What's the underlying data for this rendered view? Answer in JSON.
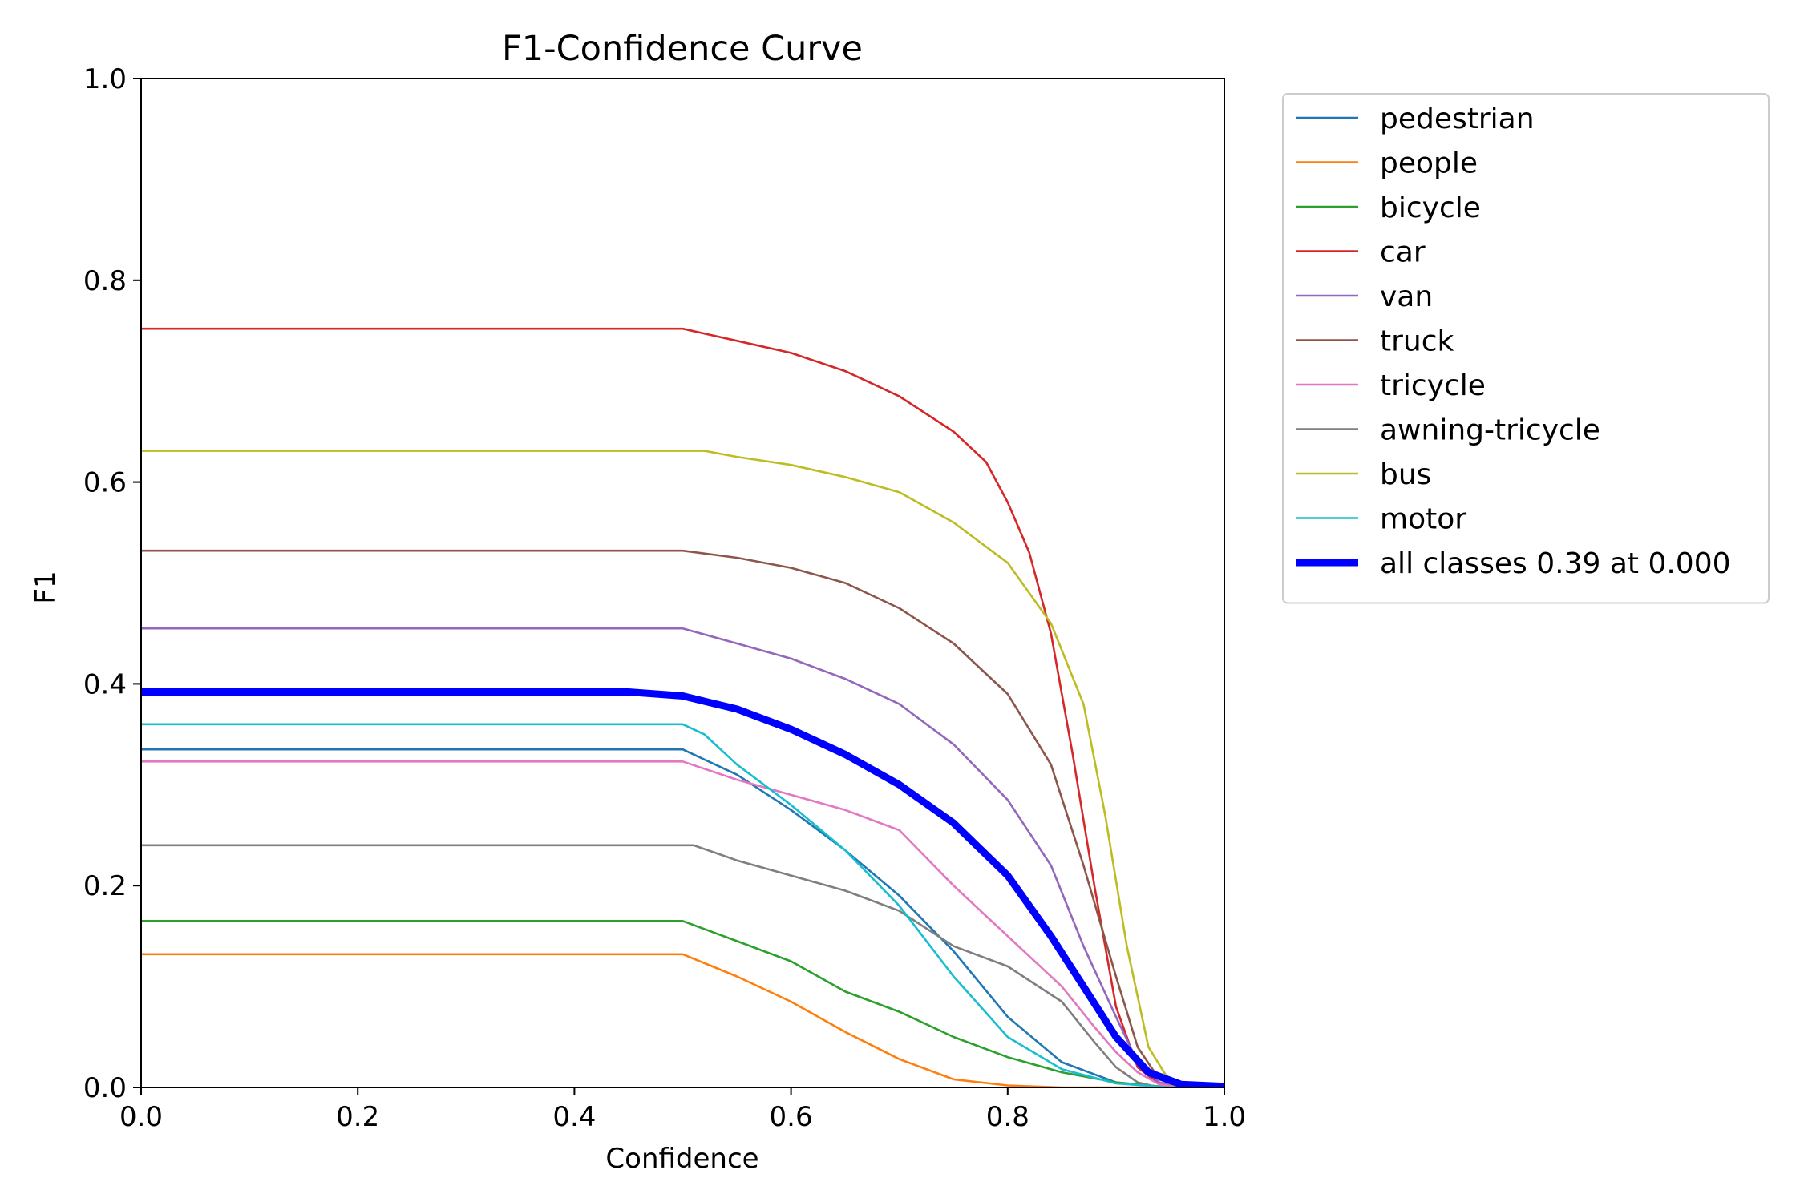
{
  "chart_data": {
    "type": "line",
    "title": "F1-Confidence Curve",
    "xlabel": "Confidence",
    "ylabel": "F1",
    "xlim": [
      0.0,
      1.0
    ],
    "ylim": [
      0.0,
      1.0
    ],
    "xticks": [
      "0.0",
      "0.2",
      "0.4",
      "0.6",
      "0.8",
      "1.0"
    ],
    "yticks": [
      "0.0",
      "0.2",
      "0.4",
      "0.6",
      "0.8",
      "1.0"
    ],
    "legend_position": "outside-top-right",
    "series": [
      {
        "name": "pedestrian",
        "color": "#1f77b4",
        "width": "thin",
        "points": [
          [
            0,
            0.335
          ],
          [
            0.5,
            0.335
          ],
          [
            0.55,
            0.31
          ],
          [
            0.6,
            0.275
          ],
          [
            0.65,
            0.235
          ],
          [
            0.7,
            0.19
          ],
          [
            0.75,
            0.135
          ],
          [
            0.8,
            0.07
          ],
          [
            0.85,
            0.025
          ],
          [
            0.9,
            0.005
          ],
          [
            0.95,
            0
          ],
          [
            1.0,
            0
          ]
        ]
      },
      {
        "name": "people",
        "color": "#ff7f0e",
        "width": "thin",
        "points": [
          [
            0,
            0.132
          ],
          [
            0.5,
            0.132
          ],
          [
            0.55,
            0.11
          ],
          [
            0.6,
            0.085
          ],
          [
            0.65,
            0.055
          ],
          [
            0.7,
            0.028
          ],
          [
            0.75,
            0.008
          ],
          [
            0.8,
            0.002
          ],
          [
            0.85,
            0
          ],
          [
            1.0,
            0
          ]
        ]
      },
      {
        "name": "bicycle",
        "color": "#2ca02c",
        "width": "thin",
        "points": [
          [
            0,
            0.165
          ],
          [
            0.5,
            0.165
          ],
          [
            0.55,
            0.145
          ],
          [
            0.6,
            0.125
          ],
          [
            0.65,
            0.095
          ],
          [
            0.7,
            0.075
          ],
          [
            0.75,
            0.05
          ],
          [
            0.8,
            0.03
          ],
          [
            0.85,
            0.015
          ],
          [
            0.9,
            0.005
          ],
          [
            0.95,
            0
          ],
          [
            1.0,
            0
          ]
        ]
      },
      {
        "name": "car",
        "color": "#d62728",
        "width": "thin",
        "points": [
          [
            0,
            0.752
          ],
          [
            0.5,
            0.752
          ],
          [
            0.55,
            0.74
          ],
          [
            0.6,
            0.728
          ],
          [
            0.65,
            0.71
          ],
          [
            0.7,
            0.685
          ],
          [
            0.75,
            0.65
          ],
          [
            0.78,
            0.62
          ],
          [
            0.8,
            0.58
          ],
          [
            0.82,
            0.53
          ],
          [
            0.84,
            0.45
          ],
          [
            0.86,
            0.33
          ],
          [
            0.88,
            0.2
          ],
          [
            0.9,
            0.08
          ],
          [
            0.92,
            0.02
          ],
          [
            0.94,
            0.003
          ],
          [
            0.96,
            0
          ],
          [
            1.0,
            0
          ]
        ]
      },
      {
        "name": "van",
        "color": "#9467bd",
        "width": "thin",
        "points": [
          [
            0,
            0.455
          ],
          [
            0.5,
            0.455
          ],
          [
            0.55,
            0.44
          ],
          [
            0.6,
            0.425
          ],
          [
            0.65,
            0.405
          ],
          [
            0.7,
            0.38
          ],
          [
            0.75,
            0.34
          ],
          [
            0.8,
            0.285
          ],
          [
            0.84,
            0.22
          ],
          [
            0.87,
            0.14
          ],
          [
            0.9,
            0.07
          ],
          [
            0.92,
            0.025
          ],
          [
            0.94,
            0.005
          ],
          [
            0.96,
            0
          ],
          [
            1.0,
            0
          ]
        ]
      },
      {
        "name": "truck",
        "color": "#8c564b",
        "width": "thin",
        "points": [
          [
            0,
            0.532
          ],
          [
            0.5,
            0.532
          ],
          [
            0.55,
            0.525
          ],
          [
            0.6,
            0.515
          ],
          [
            0.65,
            0.5
          ],
          [
            0.7,
            0.475
          ],
          [
            0.75,
            0.44
          ],
          [
            0.8,
            0.39
          ],
          [
            0.84,
            0.32
          ],
          [
            0.87,
            0.22
          ],
          [
            0.9,
            0.11
          ],
          [
            0.92,
            0.04
          ],
          [
            0.94,
            0.008
          ],
          [
            0.96,
            0
          ],
          [
            1.0,
            0
          ]
        ]
      },
      {
        "name": "tricycle",
        "color": "#e377c2",
        "width": "thin",
        "points": [
          [
            0,
            0.323
          ],
          [
            0.5,
            0.323
          ],
          [
            0.55,
            0.305
          ],
          [
            0.6,
            0.29
          ],
          [
            0.65,
            0.275
          ],
          [
            0.7,
            0.255
          ],
          [
            0.75,
            0.2
          ],
          [
            0.8,
            0.15
          ],
          [
            0.85,
            0.1
          ],
          [
            0.88,
            0.06
          ],
          [
            0.9,
            0.035
          ],
          [
            0.92,
            0.015
          ],
          [
            0.94,
            0.003
          ],
          [
            0.96,
            0
          ],
          [
            1.0,
            0
          ]
        ]
      },
      {
        "name": "awning-tricycle",
        "color": "#7f7f7f",
        "width": "thin",
        "points": [
          [
            0,
            0.24
          ],
          [
            0.51,
            0.24
          ],
          [
            0.55,
            0.225
          ],
          [
            0.6,
            0.21
          ],
          [
            0.65,
            0.195
          ],
          [
            0.7,
            0.175
          ],
          [
            0.75,
            0.14
          ],
          [
            0.8,
            0.12
          ],
          [
            0.85,
            0.085
          ],
          [
            0.88,
            0.045
          ],
          [
            0.9,
            0.02
          ],
          [
            0.92,
            0.005
          ],
          [
            0.94,
            0
          ],
          [
            1.0,
            0
          ]
        ]
      },
      {
        "name": "bus",
        "color": "#bcbd22",
        "width": "thin",
        "points": [
          [
            0,
            0.631
          ],
          [
            0.52,
            0.631
          ],
          [
            0.55,
            0.625
          ],
          [
            0.6,
            0.617
          ],
          [
            0.65,
            0.605
          ],
          [
            0.7,
            0.59
          ],
          [
            0.75,
            0.56
          ],
          [
            0.8,
            0.52
          ],
          [
            0.84,
            0.46
          ],
          [
            0.87,
            0.38
          ],
          [
            0.89,
            0.27
          ],
          [
            0.91,
            0.14
          ],
          [
            0.93,
            0.04
          ],
          [
            0.95,
            0.005
          ],
          [
            0.97,
            0
          ],
          [
            1.0,
            0
          ]
        ]
      },
      {
        "name": "motor",
        "color": "#17becf",
        "width": "thin",
        "points": [
          [
            0,
            0.36
          ],
          [
            0.5,
            0.36
          ],
          [
            0.52,
            0.35
          ],
          [
            0.55,
            0.32
          ],
          [
            0.6,
            0.28
          ],
          [
            0.65,
            0.235
          ],
          [
            0.7,
            0.18
          ],
          [
            0.75,
            0.11
          ],
          [
            0.8,
            0.05
          ],
          [
            0.85,
            0.018
          ],
          [
            0.9,
            0.004
          ],
          [
            0.95,
            0
          ],
          [
            1.0,
            0
          ]
        ]
      },
      {
        "name": "all classes 0.39 at 0.000",
        "color": "#0000ff",
        "width": "thick",
        "points": [
          [
            0,
            0.392
          ],
          [
            0.45,
            0.392
          ],
          [
            0.5,
            0.388
          ],
          [
            0.55,
            0.375
          ],
          [
            0.6,
            0.355
          ],
          [
            0.65,
            0.33
          ],
          [
            0.7,
            0.3
          ],
          [
            0.75,
            0.262
          ],
          [
            0.8,
            0.21
          ],
          [
            0.84,
            0.15
          ],
          [
            0.87,
            0.1
          ],
          [
            0.9,
            0.05
          ],
          [
            0.93,
            0.015
          ],
          [
            0.96,
            0.003
          ],
          [
            1.0,
            0.001
          ]
        ]
      }
    ]
  }
}
